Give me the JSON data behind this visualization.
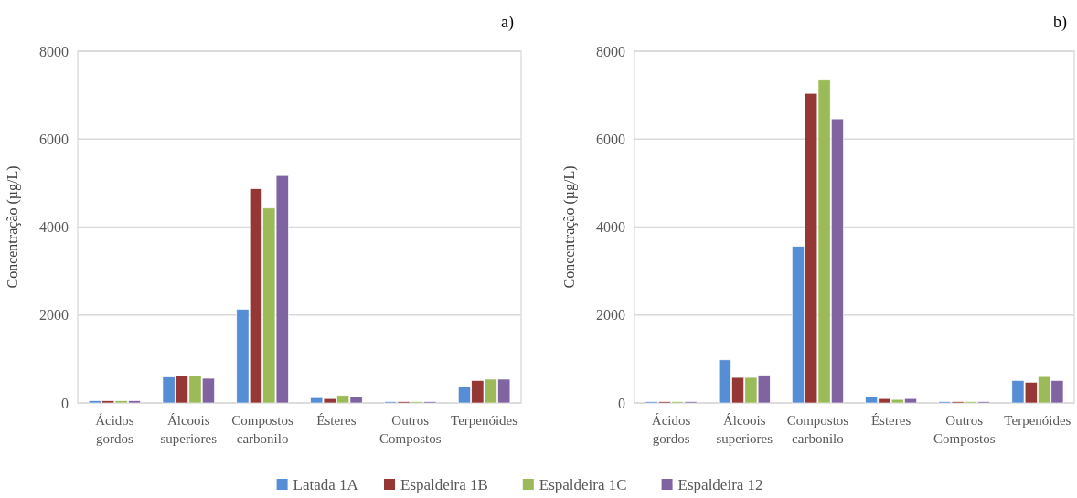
{
  "chart_data": [
    {
      "type": "bar",
      "title": "a)",
      "ylabel": "Concentração (µg/L)",
      "categories": [
        "Ácidos gordos",
        "Álcoois superiores",
        "Compostos carbonilo",
        "Ésteres",
        "Outros Compostos",
        "Terpenóides"
      ],
      "ylim": [
        0,
        8000
      ],
      "yticks": [
        0,
        2000,
        4000,
        6000,
        8000
      ],
      "grid": "y",
      "legend": false,
      "series": [
        {
          "color": "#558ed5",
          "values": [
            50,
            590,
            2130,
            120,
            30,
            370
          ]
        },
        {
          "color": "#953735",
          "values": [
            50,
            620,
            4870,
            100,
            30,
            510
          ]
        },
        {
          "color": "#9bbb59",
          "values": [
            50,
            620,
            4430,
            170,
            30,
            540
          ]
        },
        {
          "color": "#8064a2",
          "values": [
            50,
            560,
            5170,
            140,
            30,
            540
          ]
        }
      ]
    },
    {
      "type": "bar",
      "title": "b)",
      "ylabel": "Concentração (µg/L)",
      "categories": [
        "Ácidos gordos",
        "Álcoois superiores",
        "Compostos carbonilo",
        "Ésteres",
        "Outros Compostos",
        "Terpenóides"
      ],
      "ylim": [
        0,
        8000
      ],
      "yticks": [
        0,
        2000,
        4000,
        6000,
        8000
      ],
      "grid": "y",
      "legend": "bottom",
      "series": [
        {
          "name": "Latada 1A",
          "color": "#558ed5",
          "values": [
            30,
            980,
            3560,
            140,
            30,
            510
          ]
        },
        {
          "name": "Espaldeira 1B",
          "color": "#953735",
          "values": [
            30,
            580,
            7040,
            100,
            30,
            470
          ]
        },
        {
          "name": "Espaldeira 1C",
          "color": "#9bbb59",
          "values": [
            30,
            580,
            7340,
            80,
            30,
            600
          ]
        },
        {
          "name": "Espaldeira 12",
          "color": "#8064a2",
          "values": [
            30,
            630,
            6460,
            100,
            30,
            510
          ]
        }
      ]
    }
  ]
}
